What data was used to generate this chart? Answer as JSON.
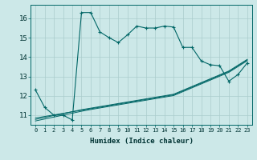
{
  "xlabel": "Humidex (Indice chaleur)",
  "bg_color": "#cce8e8",
  "grid_color": "#aacccc",
  "line_color": "#006666",
  "xlim": [
    -0.5,
    23.5
  ],
  "ylim": [
    10.5,
    16.7
  ],
  "yticks": [
    11,
    12,
    13,
    14,
    15,
    16
  ],
  "xticks": [
    0,
    1,
    2,
    3,
    4,
    5,
    6,
    7,
    8,
    9,
    10,
    11,
    12,
    13,
    14,
    15,
    16,
    17,
    18,
    19,
    20,
    21,
    22,
    23
  ],
  "xtick_labels": [
    "0",
    "1",
    "2",
    "3",
    "4",
    "5",
    "6",
    "7",
    "8",
    "9",
    "10",
    "11",
    "12",
    "13",
    "14",
    "15",
    "16",
    "17",
    "18",
    "19",
    "20",
    "21",
    "22",
    "23"
  ],
  "series1_x": [
    0,
    1,
    2,
    3,
    4,
    5,
    6,
    7,
    8,
    9,
    10,
    11,
    12,
    13,
    14,
    15,
    16,
    17,
    18,
    19,
    20,
    21,
    22,
    23
  ],
  "series1_y": [
    12.3,
    11.4,
    11.0,
    11.0,
    10.75,
    16.3,
    16.3,
    15.3,
    15.0,
    14.75,
    15.15,
    15.6,
    15.5,
    15.5,
    15.6,
    15.55,
    14.5,
    14.5,
    13.8,
    13.6,
    13.55,
    12.75,
    13.1,
    13.7
  ],
  "series2_x": [
    0,
    1,
    2,
    3,
    4,
    5,
    6,
    7,
    8,
    9,
    10,
    11,
    12,
    13,
    14,
    15,
    16,
    17,
    18,
    19,
    20,
    21,
    22,
    23
  ],
  "series2_y": [
    10.85,
    10.93,
    11.01,
    11.09,
    11.17,
    11.25,
    11.33,
    11.41,
    11.49,
    11.57,
    11.65,
    11.73,
    11.81,
    11.89,
    11.97,
    12.05,
    12.25,
    12.45,
    12.65,
    12.85,
    13.05,
    13.25,
    13.55,
    13.85
  ],
  "series3_x": [
    0,
    1,
    2,
    3,
    4,
    5,
    6,
    7,
    8,
    9,
    10,
    11,
    12,
    13,
    14,
    15,
    16,
    17,
    18,
    19,
    20,
    21,
    22,
    23
  ],
  "series3_y": [
    10.78,
    10.88,
    10.98,
    11.08,
    11.18,
    11.28,
    11.36,
    11.44,
    11.52,
    11.6,
    11.68,
    11.76,
    11.84,
    11.92,
    12.0,
    12.08,
    12.28,
    12.48,
    12.68,
    12.88,
    13.08,
    13.28,
    13.58,
    13.88
  ],
  "series4_x": [
    0,
    1,
    2,
    3,
    4,
    5,
    6,
    7,
    8,
    9,
    10,
    11,
    12,
    13,
    14,
    15,
    16,
    17,
    18,
    19,
    20,
    21,
    22,
    23
  ],
  "series4_y": [
    10.7,
    10.8,
    10.9,
    11.0,
    11.1,
    11.2,
    11.29,
    11.37,
    11.45,
    11.53,
    11.61,
    11.69,
    11.77,
    11.85,
    11.93,
    12.01,
    12.21,
    12.41,
    12.61,
    12.81,
    13.01,
    13.21,
    13.51,
    13.81
  ]
}
